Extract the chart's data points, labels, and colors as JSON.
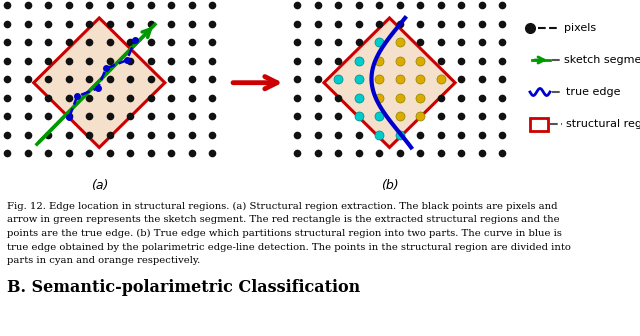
{
  "bg_color": "#ffffff",
  "dot_color": "#111111",
  "fill_color": "#f5e0cc",
  "red_color": "#cc0000",
  "green_color": "#009900",
  "blue_color": "#0000cc",
  "cyan_color": "#00cccc",
  "orange_color": "#ddaa00",
  "caption_lines": [
    "Fig. 12. Edge location in structural regions. (a) Structural region extraction. The black points are pixels and",
    "arrow in green represents the sketch segment. The red rectangle is the extracted structural regions and the",
    "points are the true edge. (b) True edge which partitions structural region into two parts. The curve in blue is",
    "true edge obtained by the polarimetric edge-line detection. The points in the structural region are divided into",
    "parts in cyan and orange respectively."
  ],
  "section_heading": "B. Semantic-polarimetric Classification",
  "label_a": "(a)",
  "label_b": "(b)",
  "legend_labels": [
    "pixels",
    "sketch segment",
    "true edge",
    "structural region"
  ]
}
